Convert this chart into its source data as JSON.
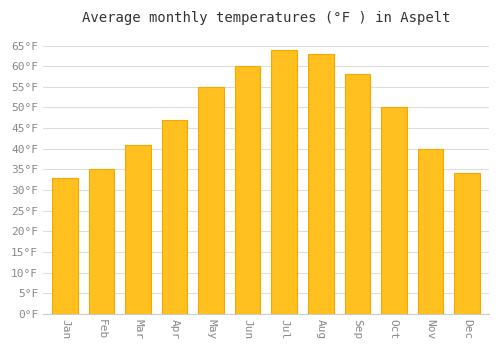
{
  "months": [
    "Jan",
    "Feb",
    "Mar",
    "Apr",
    "May",
    "Jun",
    "Jul",
    "Aug",
    "Sep",
    "Oct",
    "Nov",
    "Dec"
  ],
  "values": [
    33,
    35,
    41,
    47,
    55,
    60,
    64,
    63,
    58,
    50,
    40,
    34
  ],
  "bar_color_face": "#FFC020",
  "bar_color_edge": "#F5A800",
  "title": "Average monthly temperatures (°F ) in Aspelt",
  "ylim": [
    0,
    68
  ],
  "ytick_values": [
    0,
    5,
    10,
    15,
    20,
    25,
    30,
    35,
    40,
    45,
    50,
    55,
    60,
    65
  ],
  "ytick_labels": [
    "0°F",
    "5°F",
    "10°F",
    "15°F",
    "20°F",
    "25°F",
    "30°F",
    "35°F",
    "40°F",
    "45°F",
    "50°F",
    "55°F",
    "60°F",
    "65°F"
  ],
  "bg_color": "#ffffff",
  "plot_bg_color": "#ffffff",
  "grid_color": "#dddddd",
  "title_fontsize": 10,
  "tick_fontsize": 8,
  "tick_color": "#888888",
  "font_family": "monospace",
  "bar_width": 0.7
}
